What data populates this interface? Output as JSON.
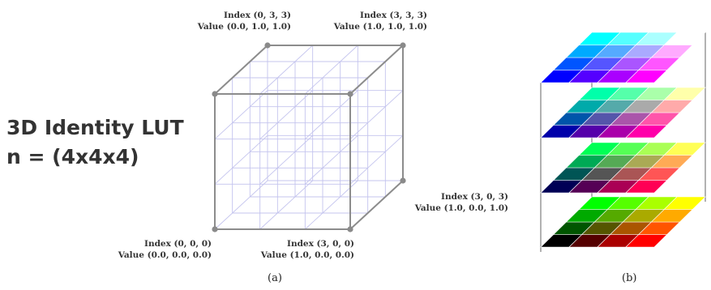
{
  "title": {
    "line1": "3D Identity LUT",
    "line2": "n = (4x4x4)"
  },
  "corners": {
    "top_back_left": {
      "index": "Index (0, 3, 3)",
      "value": "Value (0.0, 1.0, 1.0)"
    },
    "top_back_right": {
      "index": "Index (3, 3, 3)",
      "value": "Value (1.0, 1.0, 1.0)"
    },
    "right_back_bottom": {
      "index": "Index (3, 0, 3)",
      "value": "Value (1.0, 0.0, 1.0)"
    },
    "origin": {
      "index": "Index (0, 0, 0)",
      "value": "Value (0.0, 0.0, 0.0)"
    },
    "x_max": {
      "index": "Index (3, 0, 0)",
      "value": "Value (1.0, 0.0, 0.0)"
    }
  },
  "captions": {
    "a": "(a)",
    "b": "(b)"
  },
  "colors": {
    "cube_edge": "#8c8c8c",
    "grid_line": "#c4c4ee",
    "vertex": "#8a8a8a",
    "text": "#333333"
  },
  "lut_layers": {
    "description_levels": 4,
    "blue_levels_top_to_bottom": [
      1.0,
      0.667,
      0.333,
      0.0
    ]
  }
}
